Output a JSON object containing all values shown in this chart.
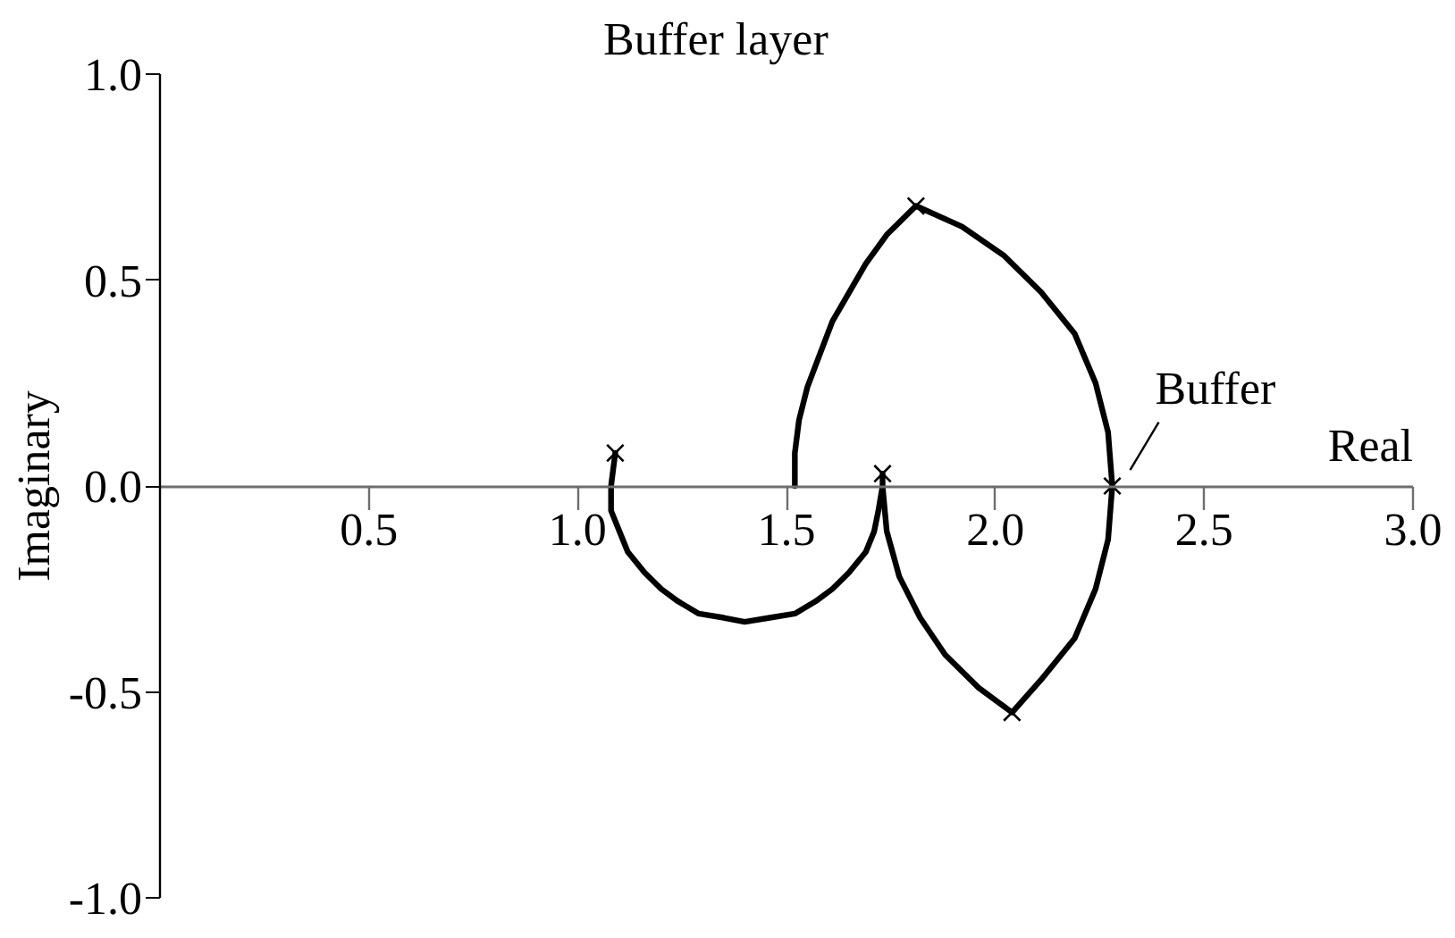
{
  "chart_data": {
    "type": "line",
    "title": "Buffer layer",
    "xlabel": "Real",
    "ylabel": "Imaginary",
    "xlim": [
      0,
      3
    ],
    "ylim": [
      -1,
      1
    ],
    "xticks": [
      0.5,
      {
        "value": 1,
        "label": "1.0"
      },
      1.5,
      {
        "value": 2,
        "label": "2.0"
      },
      2.5,
      {
        "value": 3,
        "label": "3.0"
      }
    ],
    "yticks": [
      {
        "value": -1,
        "label": "-1.0"
      },
      -0.5,
      {
        "value": 0,
        "label": "0.0"
      },
      0.5,
      {
        "value": 1,
        "label": "1.0"
      }
    ],
    "series": [
      {
        "color": "#000000",
        "line_style": "solid",
        "x": [
          1.52,
          1.52,
          1.53,
          1.55,
          1.58,
          1.61,
          1.65,
          1.69,
          1.74,
          1.81,
          1.92,
          2.02,
          2.11,
          2.19,
          2.24,
          2.27,
          2.28,
          2.27,
          2.24,
          2.19,
          2.11,
          2.04,
          1.96,
          1.88,
          1.82,
          1.77,
          1.74,
          1.73,
          1.73,
          1.73,
          1.72,
          1.71,
          1.69,
          1.65,
          1.61,
          1.57,
          1.52,
          1.46,
          1.4,
          1.35,
          1.29,
          1.24,
          1.2,
          1.16,
          1.12,
          1.1,
          1.08,
          1.08,
          1.09
        ],
        "values": [
          0,
          0.08,
          0.16,
          0.24,
          0.32,
          0.4,
          0.47,
          0.54,
          0.61,
          0.68,
          0.63,
          0.56,
          0.47,
          0.37,
          0.25,
          0.13,
          0,
          -0.13,
          -0.25,
          -0.37,
          -0.47,
          -0.55,
          -0.49,
          -0.41,
          -0.32,
          -0.22,
          -0.11,
          0,
          0.03,
          0,
          -0.06,
          -0.11,
          -0.16,
          -0.21,
          -0.25,
          -0.28,
          -0.31,
          -0.32,
          -0.33,
          -0.32,
          -0.31,
          -0.28,
          -0.25,
          -0.21,
          -0.16,
          -0.11,
          -0.06,
          0,
          0.08
        ]
      },
      {
        "type": "scatter",
        "color": "#000000",
        "marker": "cross",
        "x": [
          1.81,
          2.28,
          2.04,
          1.73,
          1.09
        ],
        "values": [
          0.68,
          0,
          -0.55,
          0.03,
          0.08
        ]
      }
    ],
    "annotations": [
      {
        "text": "Buffer",
        "x": 2.28,
        "y": 0
      }
    ]
  }
}
